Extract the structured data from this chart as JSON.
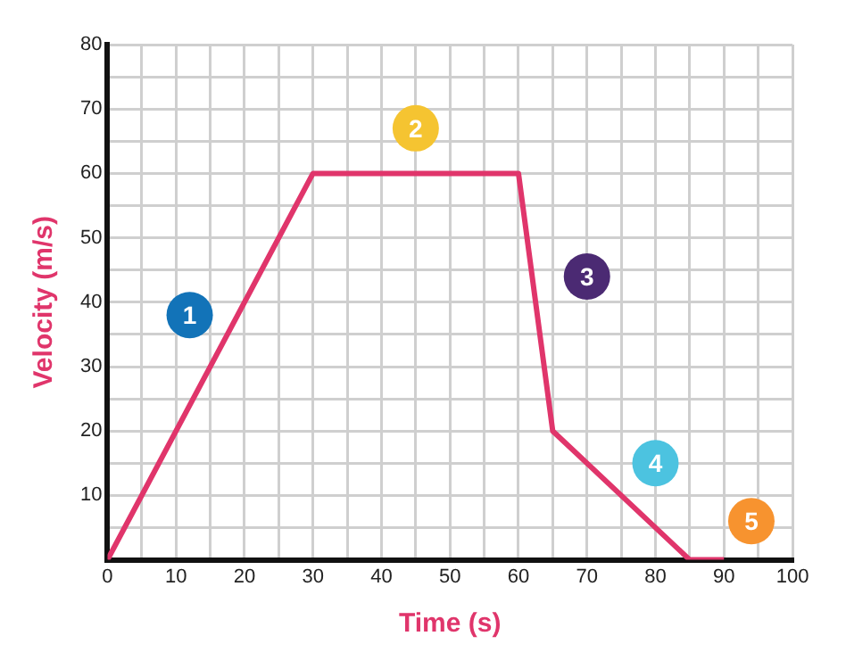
{
  "chart_data": {
    "type": "line",
    "xlabel": "Time (s)",
    "ylabel": "Velocity (m/s)",
    "x": [
      0,
      30,
      60,
      65,
      85,
      90
    ],
    "series": [
      {
        "color": "#e0356b",
        "values": [
          0,
          60,
          60,
          20,
          0,
          0
        ]
      }
    ],
    "xlim": [
      0,
      100
    ],
    "xticks": [
      0,
      {
        "value": 5,
        "label": null
      },
      10,
      {
        "value": 15,
        "label": null
      },
      20,
      {
        "value": 25,
        "label": null
      },
      30,
      {
        "value": 35,
        "label": null
      },
      40,
      {
        "value": 45,
        "label": null
      },
      50,
      {
        "value": 55,
        "label": null
      },
      60,
      {
        "value": 65,
        "label": null
      },
      70,
      {
        "value": 75,
        "label": null
      },
      80,
      {
        "value": 85,
        "label": null
      },
      90,
      {
        "value": 95,
        "label": null
      },
      100
    ],
    "ylim": [
      0,
      80
    ],
    "yticks": [
      {
        "value": 0,
        "label": null
      },
      {
        "value": 5,
        "label": null
      },
      10,
      {
        "value": 15,
        "label": null
      },
      20,
      {
        "value": 25,
        "label": null
      },
      30,
      {
        "value": 35,
        "label": null
      },
      40,
      {
        "value": 45,
        "label": null
      },
      50,
      {
        "value": 55,
        "label": null
      },
      60,
      {
        "value": 65,
        "label": null
      },
      70,
      {
        "value": 75,
        "label": null
      },
      80
    ],
    "grid": true,
    "legend": false,
    "marker": "none",
    "line_style": "solid",
    "annotations": [
      {
        "text": "1",
        "x": 12,
        "y": 38
      },
      {
        "text": "2",
        "x": 45,
        "y": 67
      },
      {
        "text": "3",
        "x": 70,
        "y": 44
      },
      {
        "text": "4",
        "x": 80,
        "y": 15
      },
      {
        "text": "5",
        "x": 94,
        "y": 6
      }
    ]
  }
}
